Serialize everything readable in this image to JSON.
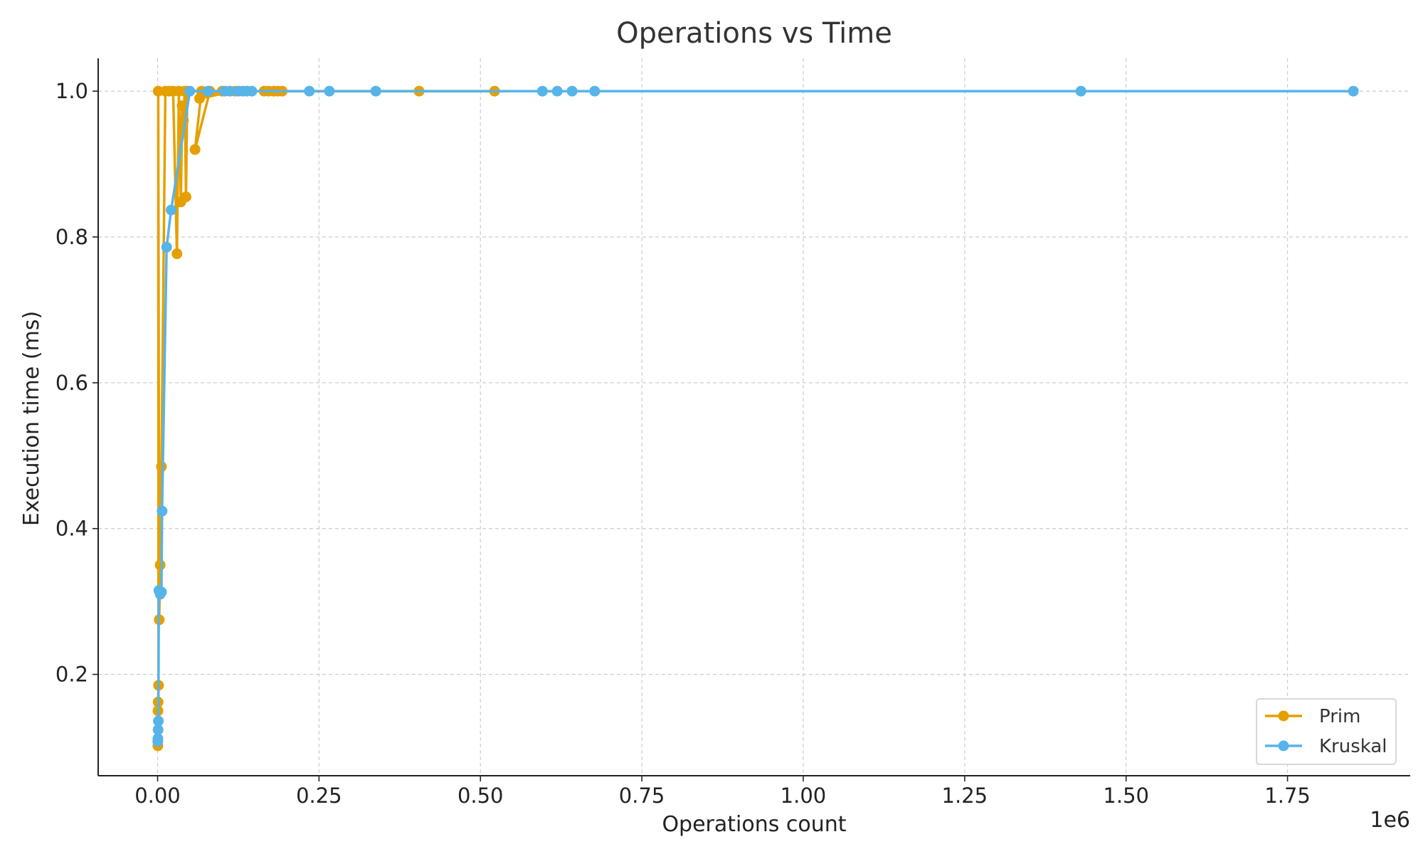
{
  "chart_data": {
    "type": "line",
    "title": "Operations vs Time",
    "xlabel": "Operations count",
    "ylabel": "Execution time (ms)",
    "x_offset_label": "1e6",
    "xlim": [
      -0.092,
      1.94
    ],
    "ylim": [
      0.061,
      1.045
    ],
    "xticks": [
      0.0,
      0.25,
      0.5,
      0.75,
      1.0,
      1.25,
      1.5,
      1.75
    ],
    "xtick_labels": [
      "0.00",
      "0.25",
      "0.50",
      "0.75",
      "1.00",
      "1.25",
      "1.50",
      "1.75"
    ],
    "yticks": [
      0.2,
      0.4,
      0.6,
      0.8,
      1.0
    ],
    "ytick_labels": [
      "0.2",
      "0.4",
      "0.6",
      "0.8",
      "1.0"
    ],
    "grid": true,
    "legend_position": "bottom-right",
    "series": [
      {
        "name": "Prim",
        "color": "#E69F00",
        "points": [
          [
            0.0004,
            0.102
          ],
          [
            0.0006,
            0.15
          ],
          [
            0.0008,
            0.162
          ],
          [
            0.0015,
            0.185
          ],
          [
            0.001,
            1.0
          ],
          [
            0.0025,
            0.275
          ],
          [
            0.004,
            0.35
          ],
          [
            0.006,
            0.485
          ],
          [
            0.012,
            1.0
          ],
          [
            0.018,
            1.0
          ],
          [
            0.024,
            1.0
          ],
          [
            0.03,
            0.777
          ],
          [
            0.033,
            1.0
          ],
          [
            0.036,
            0.848
          ],
          [
            0.038,
            0.98
          ],
          [
            0.04,
            0.96
          ],
          [
            0.042,
            1.0
          ],
          [
            0.044,
            0.855
          ],
          [
            0.046,
            1.0
          ],
          [
            0.068,
            1.0
          ],
          [
            0.058,
            0.92
          ],
          [
            0.081,
            1.0
          ],
          [
            0.1,
            1.0
          ],
          [
            0.065,
            0.99
          ],
          [
            0.12,
            1.0
          ],
          [
            0.165,
            1.0
          ],
          [
            0.172,
            1.0
          ],
          [
            0.18,
            1.0
          ],
          [
            0.186,
            1.0
          ],
          [
            0.193,
            1.0
          ],
          [
            0.405,
            1.0
          ],
          [
            0.522,
            1.0
          ]
        ]
      },
      {
        "name": "Kruskal",
        "color": "#56B4E9",
        "points": [
          [
            0.0003,
            0.108
          ],
          [
            0.0005,
            0.112
          ],
          [
            0.0008,
            0.124
          ],
          [
            0.0012,
            0.136
          ],
          [
            0.002,
            0.315
          ],
          [
            0.004,
            0.31
          ],
          [
            0.006,
            0.313
          ],
          [
            0.007,
            0.424
          ],
          [
            0.014,
            0.786
          ],
          [
            0.021,
            0.837
          ],
          [
            0.05,
            1.0
          ],
          [
            0.078,
            1.0
          ],
          [
            0.104,
            1.0
          ],
          [
            0.112,
            1.0
          ],
          [
            0.125,
            1.0
          ],
          [
            0.132,
            1.0
          ],
          [
            0.138,
            1.0
          ],
          [
            0.146,
            1.0
          ],
          [
            0.235,
            1.0
          ],
          [
            0.266,
            1.0
          ],
          [
            0.338,
            1.0
          ],
          [
            0.596,
            1.0
          ],
          [
            0.619,
            1.0
          ],
          [
            0.642,
            1.0
          ],
          [
            0.677,
            1.0
          ],
          [
            1.43,
            1.0
          ],
          [
            1.852,
            1.0
          ]
        ]
      }
    ]
  }
}
